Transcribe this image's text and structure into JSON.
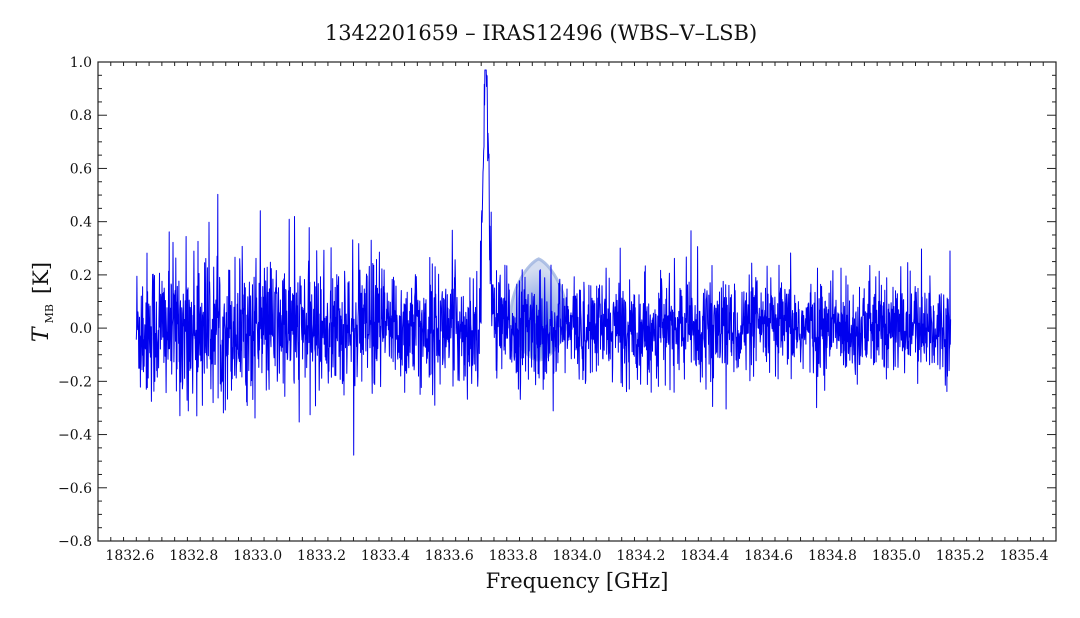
{
  "chart_data": {
    "type": "line",
    "title": "1342201659 – IRAS12496 (WBS–V–LSB)",
    "xlabel": "Frequency [GHz]",
    "ylabel_main": "T",
    "ylabel_sub": "MB",
    "ylabel_unit": "[K]",
    "xlim": [
      1832.5,
      1835.5
    ],
    "ylim": [
      -0.8,
      1.0
    ],
    "x_ticks": [
      1832.6,
      1832.8,
      1833.0,
      1833.2,
      1833.4,
      1833.6,
      1833.8,
      1834.0,
      1834.2,
      1834.4,
      1834.6,
      1834.8,
      1835.0,
      1835.2,
      1835.4
    ],
    "x_tick_labels": [
      "1832.6",
      "1832.8",
      "1833.0",
      "1833.2",
      "1833.4",
      "1833.6",
      "1833.8",
      "1834.0",
      "1834.2",
      "1834.4",
      "1834.6",
      "1834.8",
      "1835.0",
      "1835.2",
      "1835.4"
    ],
    "y_ticks": [
      -0.8,
      -0.6,
      -0.4,
      -0.2,
      0.0,
      0.2,
      0.4,
      0.6,
      0.8,
      1.0
    ],
    "y_tick_labels": [
      "−0.8",
      "−0.6",
      "−0.4",
      "−0.2",
      "0.0",
      "0.2",
      "0.4",
      "0.6",
      "0.8",
      "1.0"
    ],
    "grid": false,
    "series": [
      {
        "color": "#0000ee",
        "x_start": 1832.62,
        "x_end": 1835.17,
        "line_center": 1833.715,
        "line_peak": 0.95,
        "line_fwhm": 0.022,
        "noise_rms_low_freq": 0.14,
        "noise_rms_high_freq": 0.09
      }
    ],
    "annotation_marker": {
      "x": 1833.88,
      "y": 0.04,
      "top": 0.26,
      "bottom": -0.12,
      "color": "#9fb4e0"
    }
  }
}
